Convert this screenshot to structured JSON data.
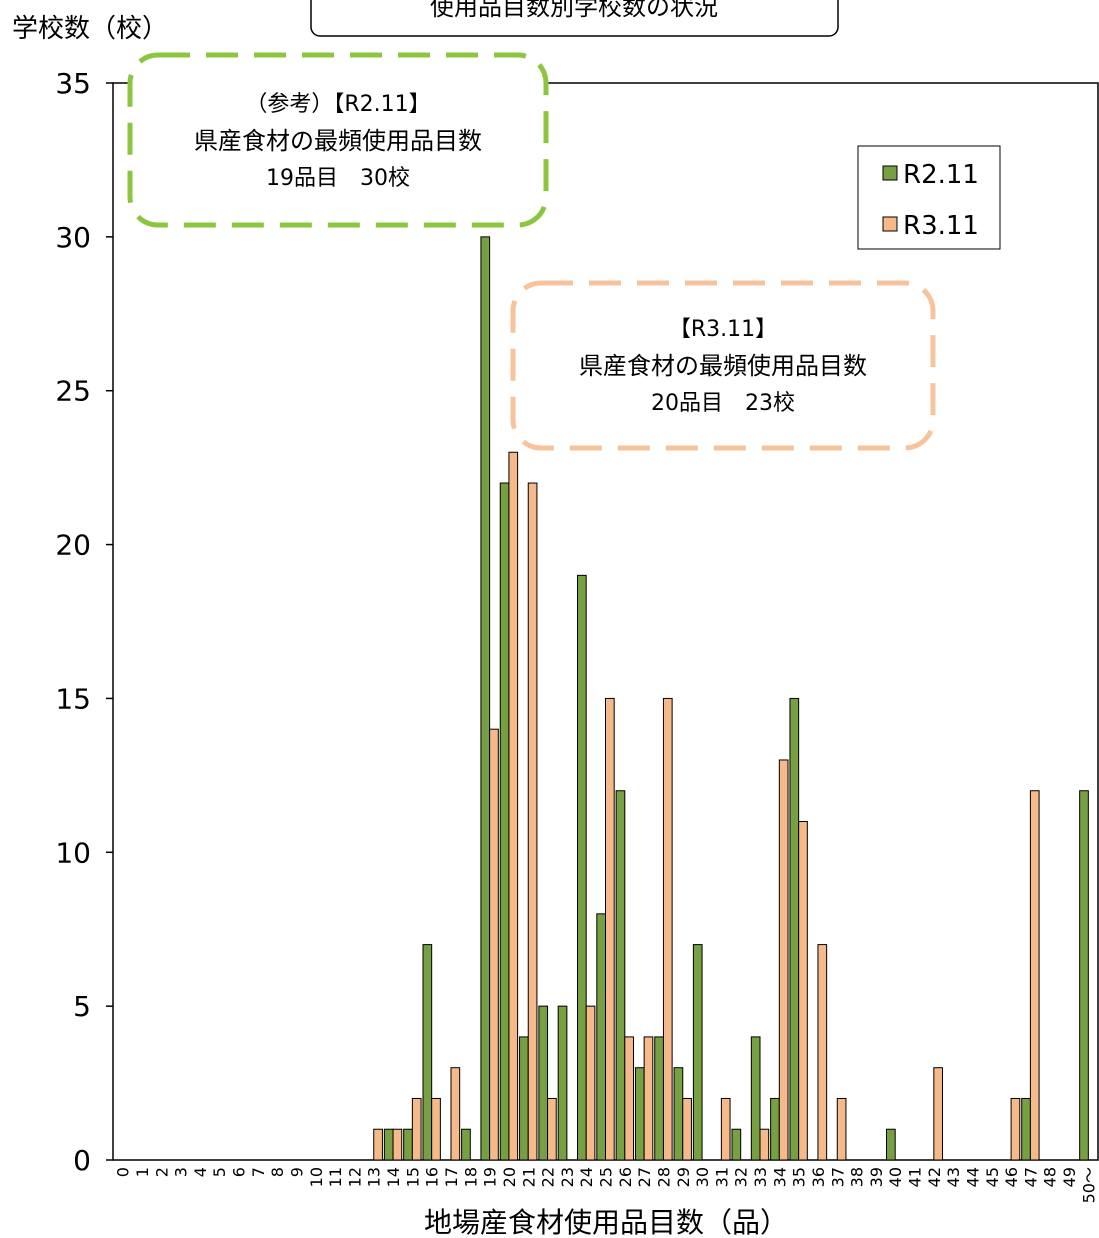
{
  "chart_data": {
    "type": "bar",
    "title": "使用品目数別学校数の状況",
    "ylabel": "学校数（校）",
    "xlabel": "地場産食材使用品目数（品）",
    "ylim": [
      0,
      35
    ],
    "yticks": [
      0,
      5,
      10,
      15,
      20,
      25,
      30,
      35
    ],
    "grid": false,
    "legend_position": "top-right",
    "categories": [
      "0",
      "1",
      "2",
      "3",
      "4",
      "5",
      "6",
      "7",
      "8",
      "9",
      "10",
      "11",
      "12",
      "13",
      "14",
      "15",
      "16",
      "17",
      "18",
      "19",
      "20",
      "21",
      "22",
      "23",
      "24",
      "25",
      "26",
      "27",
      "28",
      "29",
      "30",
      "31",
      "32",
      "33",
      "34",
      "35",
      "36",
      "37",
      "38",
      "39",
      "40",
      "41",
      "42",
      "43",
      "44",
      "45",
      "46",
      "47",
      "48",
      "49",
      "50～"
    ],
    "series": [
      {
        "name": "R2.11",
        "color": "#77a043",
        "values": [
          0,
          0,
          0,
          0,
          0,
          0,
          0,
          0,
          0,
          0,
          0,
          0,
          0,
          0,
          1,
          1,
          7,
          0,
          1,
          30,
          22,
          4,
          5,
          5,
          19,
          8,
          12,
          3,
          4,
          3,
          7,
          0,
          1,
          4,
          2,
          15,
          0,
          0,
          0,
          0,
          1,
          0,
          0,
          0,
          0,
          0,
          0,
          2,
          0,
          0,
          12
        ]
      },
      {
        "name": "R3.11",
        "color": "#f5b98a",
        "values": [
          0,
          0,
          0,
          0,
          0,
          0,
          0,
          0,
          0,
          0,
          0,
          0,
          0,
          1,
          1,
          2,
          2,
          3,
          0,
          14,
          23,
          22,
          2,
          0,
          5,
          15,
          4,
          4,
          15,
          2,
          0,
          2,
          0,
          1,
          13,
          11,
          7,
          2,
          0,
          0,
          0,
          0,
          3,
          0,
          0,
          0,
          2,
          12,
          0,
          0,
          0
        ]
      }
    ],
    "annotations": [
      {
        "lines": [
          "（参考）【R2.11】",
          "県産食材の最頻使用品目数",
          "19品目　30校"
        ],
        "border_color": "#8cc63f"
      },
      {
        "lines": [
          "【R3.11】",
          "県産食材の最頻使用品目数",
          "20品目　23校"
        ],
        "border_color": "#f8c39b"
      }
    ]
  }
}
